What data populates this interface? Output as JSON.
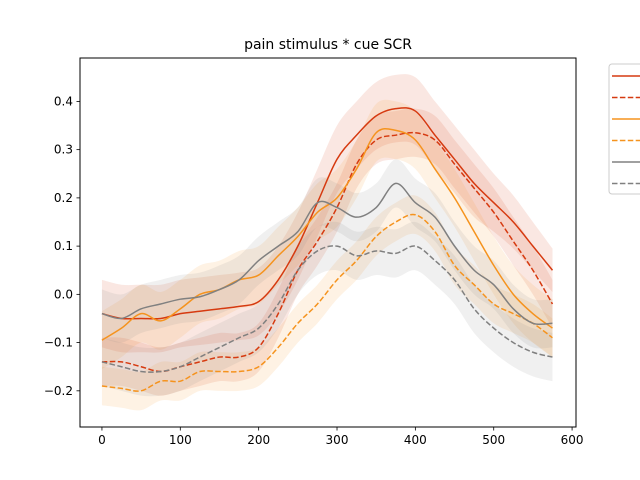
{
  "chart_data": {
    "type": "line",
    "title": "pain stimulus * cue SCR",
    "xlabel": "",
    "ylabel": "",
    "xlim": [
      -28,
      605
    ],
    "ylim": [
      -0.275,
      0.49
    ],
    "xticks": [
      0,
      100,
      200,
      300,
      400,
      500,
      600
    ],
    "yticks": [
      -0.2,
      -0.1,
      0.0,
      0.1,
      0.2,
      0.3,
      0.4
    ],
    "ytick_labels": [
      "−0.2",
      "−0.1",
      "0.0",
      "0.1",
      "0.2",
      "0.3",
      "0.4"
    ],
    "grid": false,
    "legend": "outside-right-top",
    "x": [
      0,
      25,
      50,
      75,
      100,
      125,
      150,
      175,
      200,
      225,
      250,
      275,
      300,
      325,
      350,
      375,
      400,
      425,
      450,
      475,
      500,
      525,
      550,
      575
    ],
    "series": [
      {
        "color": "#d63a10",
        "dash": "solid",
        "values": [
          -0.04,
          -0.05,
          -0.05,
          -0.05,
          -0.04,
          -0.035,
          -0.03,
          -0.025,
          -0.015,
          0.03,
          0.1,
          0.19,
          0.28,
          0.33,
          0.37,
          0.385,
          0.38,
          0.33,
          0.28,
          0.23,
          0.19,
          0.15,
          0.1,
          0.05
        ],
        "band": [
          0.07,
          0.07,
          0.07,
          0.07,
          0.07,
          0.07,
          0.07,
          0.07,
          0.07,
          0.07,
          0.07,
          0.07,
          0.07,
          0.07,
          0.07,
          0.07,
          0.07,
          0.07,
          0.07,
          0.07,
          0.06,
          0.055,
          0.05,
          0.045
        ]
      },
      {
        "color": "#d63a10",
        "dash": "dashed",
        "values": [
          -0.14,
          -0.14,
          -0.15,
          -0.16,
          -0.15,
          -0.14,
          -0.13,
          -0.13,
          -0.11,
          -0.04,
          0.05,
          0.11,
          0.18,
          0.27,
          0.32,
          0.33,
          0.335,
          0.32,
          0.27,
          0.22,
          0.17,
          0.11,
          0.05,
          -0.02
        ],
        "band": [
          0.05,
          0.05,
          0.05,
          0.05,
          0.05,
          0.05,
          0.05,
          0.05,
          0.05,
          0.05,
          0.05,
          0.05,
          0.05,
          0.05,
          0.05,
          0.05,
          0.05,
          0.05,
          0.05,
          0.05,
          0.05,
          0.05,
          0.05,
          0.05
        ]
      },
      {
        "color": "#f5931e",
        "dash": "solid",
        "values": [
          -0.095,
          -0.07,
          -0.04,
          -0.055,
          -0.03,
          0.0,
          0.01,
          0.03,
          0.04,
          0.08,
          0.12,
          0.17,
          0.2,
          0.26,
          0.335,
          0.34,
          0.32,
          0.26,
          0.2,
          0.13,
          0.06,
          0.0,
          -0.04,
          -0.07
        ],
        "band": [
          0.06,
          0.06,
          0.06,
          0.06,
          0.06,
          0.06,
          0.06,
          0.06,
          0.06,
          0.06,
          0.06,
          0.06,
          0.06,
          0.06,
          0.06,
          0.06,
          0.06,
          0.06,
          0.06,
          0.06,
          0.06,
          0.06,
          0.06,
          0.06
        ]
      },
      {
        "color": "#f5931e",
        "dash": "dashed",
        "values": [
          -0.19,
          -0.195,
          -0.2,
          -0.18,
          -0.18,
          -0.16,
          -0.16,
          -0.16,
          -0.15,
          -0.11,
          -0.06,
          -0.02,
          0.03,
          0.07,
          0.12,
          0.15,
          0.165,
          0.13,
          0.06,
          0.02,
          -0.02,
          -0.04,
          -0.06,
          -0.09
        ],
        "band": [
          0.04,
          0.04,
          0.04,
          0.04,
          0.04,
          0.04,
          0.04,
          0.04,
          0.04,
          0.04,
          0.04,
          0.04,
          0.04,
          0.04,
          0.04,
          0.04,
          0.04,
          0.04,
          0.04,
          0.04,
          0.04,
          0.04,
          0.04,
          0.04
        ]
      },
      {
        "color": "#808080",
        "dash": "solid",
        "values": [
          -0.04,
          -0.05,
          -0.03,
          -0.02,
          -0.01,
          -0.005,
          0.01,
          0.03,
          0.07,
          0.1,
          0.13,
          0.19,
          0.18,
          0.16,
          0.18,
          0.23,
          0.19,
          0.16,
          0.1,
          0.05,
          0.02,
          -0.03,
          -0.06,
          -0.06
        ],
        "band": [
          0.05,
          0.05,
          0.05,
          0.05,
          0.05,
          0.05,
          0.05,
          0.05,
          0.05,
          0.05,
          0.05,
          0.05,
          0.05,
          0.05,
          0.05,
          0.05,
          0.05,
          0.05,
          0.05,
          0.05,
          0.05,
          0.05,
          0.05,
          0.05
        ]
      },
      {
        "color": "#808080",
        "dash": "dashed",
        "values": [
          -0.14,
          -0.15,
          -0.16,
          -0.16,
          -0.15,
          -0.13,
          -0.11,
          -0.09,
          -0.07,
          -0.02,
          0.05,
          0.09,
          0.1,
          0.08,
          0.09,
          0.085,
          0.1,
          0.07,
          0.03,
          -0.03,
          -0.07,
          -0.1,
          -0.12,
          -0.13
        ],
        "band": [
          0.05,
          0.05,
          0.05,
          0.05,
          0.05,
          0.05,
          0.05,
          0.05,
          0.05,
          0.05,
          0.05,
          0.05,
          0.05,
          0.05,
          0.05,
          0.05,
          0.05,
          0.05,
          0.05,
          0.05,
          0.05,
          0.05,
          0.05,
          0.05
        ]
      }
    ]
  }
}
